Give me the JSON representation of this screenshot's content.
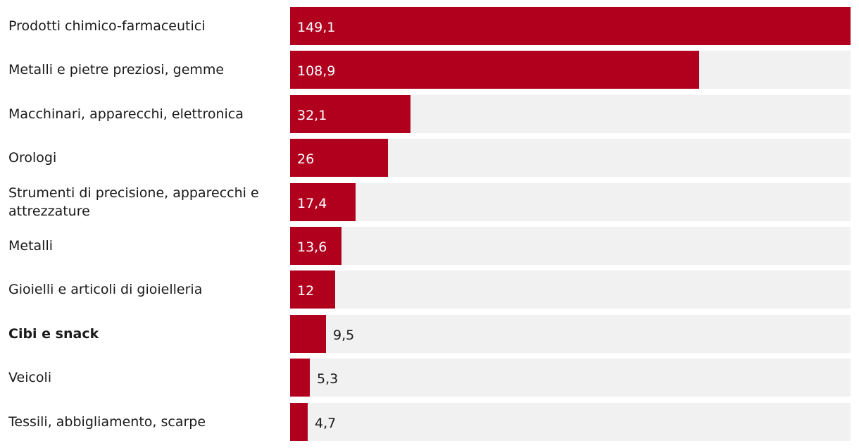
{
  "chart_data": {
    "type": "bar",
    "orientation": "horizontal",
    "bar_color": "#b0001e",
    "track_color": "#f1f1f1",
    "xlim": [
      0,
      149.1
    ],
    "categories": [
      "Prodotti chimico-farmaceutici",
      "Metalli e pietre preziosi, gemme",
      "Macchinari, apparecchi, elettronica",
      "Orologi",
      "Strumenti di precisione, apparecchi e attrezzature",
      "Metalli",
      "Gioielli e articoli di gioielleria",
      "Cibi e snack",
      "Veicoli",
      "Tessili, abbigliamento, scarpe"
    ],
    "values": [
      149.1,
      108.9,
      32.1,
      26,
      17.4,
      13.6,
      12,
      9.5,
      5.3,
      4.7
    ],
    "value_labels": [
      "149,1",
      "108,9",
      "32,1",
      "26",
      "17,4",
      "13,6",
      "12",
      "9,5",
      "5,3",
      "4,7"
    ],
    "highlighted_category": "Cibi e snack"
  }
}
